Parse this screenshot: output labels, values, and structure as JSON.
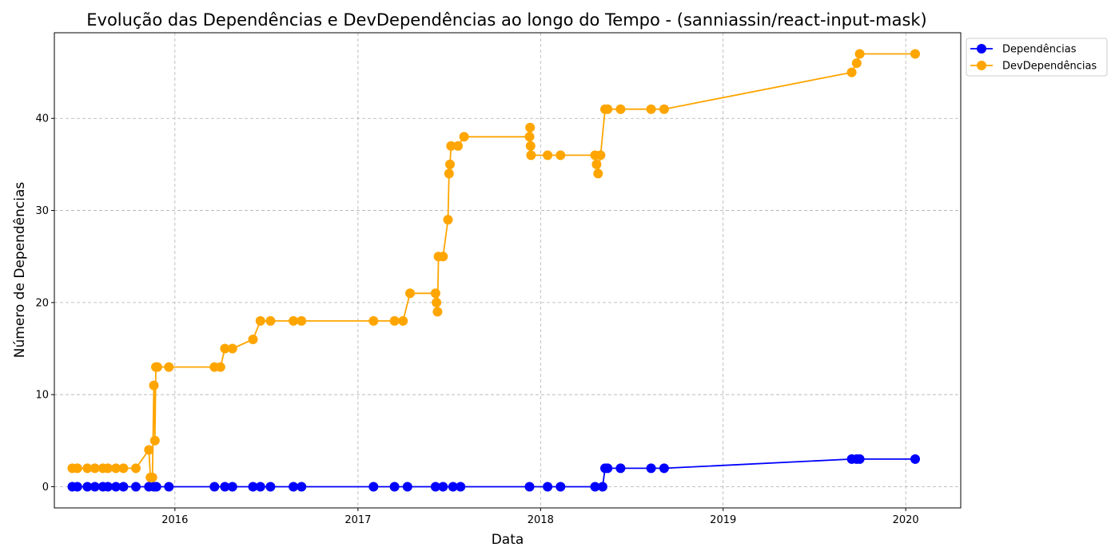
{
  "chart_data": {
    "type": "line",
    "title": "Evolução das Dependências e DevDependências ao longo do Tempo - (sanniassin/react-input-mask)",
    "xlabel": "Data",
    "ylabel": "Número de Dependências",
    "xlim": [
      "2015-05-05",
      "2020-04-20"
    ],
    "ylim": [
      -2.3,
      49.3
    ],
    "x_ticks": [
      "2016",
      "2017",
      "2018",
      "2019",
      "2020"
    ],
    "y_ticks": [
      0,
      10,
      20,
      30,
      40
    ],
    "grid": true,
    "legend_position": "outside top-right",
    "series": [
      {
        "name": "Dependências",
        "color": "#0000ff",
        "points": [
          [
            "2015-06-10",
            0
          ],
          [
            "2015-06-20",
            0
          ],
          [
            "2015-07-10",
            0
          ],
          [
            "2015-07-25",
            0
          ],
          [
            "2015-08-10",
            0
          ],
          [
            "2015-08-20",
            0
          ],
          [
            "2015-09-05",
            0
          ],
          [
            "2015-09-20",
            0
          ],
          [
            "2015-10-15",
            0
          ],
          [
            "2015-11-10",
            0
          ],
          [
            "2015-11-20",
            0
          ],
          [
            "2015-11-25",
            0
          ],
          [
            "2015-12-20",
            0
          ],
          [
            "2016-03-20",
            0
          ],
          [
            "2016-04-10",
            0
          ],
          [
            "2016-04-25",
            0
          ],
          [
            "2016-06-05",
            0
          ],
          [
            "2016-06-20",
            0
          ],
          [
            "2016-07-10",
            0
          ],
          [
            "2016-08-25",
            0
          ],
          [
            "2016-09-10",
            0
          ],
          [
            "2017-02-01",
            0
          ],
          [
            "2017-03-15",
            0
          ],
          [
            "2017-04-10",
            0
          ],
          [
            "2017-06-05",
            0
          ],
          [
            "2017-06-20",
            0
          ],
          [
            "2017-07-10",
            0
          ],
          [
            "2017-07-25",
            0
          ],
          [
            "2017-12-10",
            0
          ],
          [
            "2018-01-15",
            0
          ],
          [
            "2018-02-10",
            0
          ],
          [
            "2018-04-20",
            0
          ],
          [
            "2018-05-05",
            0
          ],
          [
            "2018-05-10",
            2
          ],
          [
            "2018-05-15",
            2
          ],
          [
            "2018-06-10",
            2
          ],
          [
            "2018-08-10",
            2
          ],
          [
            "2018-09-05",
            2
          ],
          [
            "2019-09-15",
            3
          ],
          [
            "2019-09-25",
            3
          ],
          [
            "2019-10-01",
            3
          ],
          [
            "2020-01-20",
            3
          ]
        ]
      },
      {
        "name": "DevDependências",
        "color": "#ffa500",
        "points": [
          [
            "2015-06-10",
            2
          ],
          [
            "2015-06-20",
            2
          ],
          [
            "2015-07-10",
            2
          ],
          [
            "2015-07-25",
            2
          ],
          [
            "2015-08-10",
            2
          ],
          [
            "2015-08-20",
            2
          ],
          [
            "2015-09-05",
            2
          ],
          [
            "2015-09-20",
            2
          ],
          [
            "2015-10-15",
            2
          ],
          [
            "2015-11-10",
            4
          ],
          [
            "2015-11-13",
            1
          ],
          [
            "2015-11-17",
            1
          ],
          [
            "2015-11-20",
            11
          ],
          [
            "2015-11-22",
            5
          ],
          [
            "2015-11-24",
            13
          ],
          [
            "2015-11-27",
            13
          ],
          [
            "2015-12-20",
            13
          ],
          [
            "2016-03-20",
            13
          ],
          [
            "2016-04-01",
            13
          ],
          [
            "2016-04-10",
            15
          ],
          [
            "2016-04-25",
            15
          ],
          [
            "2016-06-05",
            16
          ],
          [
            "2016-06-20",
            18
          ],
          [
            "2016-07-10",
            18
          ],
          [
            "2016-08-25",
            18
          ],
          [
            "2016-09-10",
            18
          ],
          [
            "2017-02-01",
            18
          ],
          [
            "2017-03-15",
            18
          ],
          [
            "2017-04-01",
            18
          ],
          [
            "2017-04-15",
            21
          ],
          [
            "2017-06-05",
            21
          ],
          [
            "2017-06-07",
            20
          ],
          [
            "2017-06-09",
            19
          ],
          [
            "2017-06-11",
            25
          ],
          [
            "2017-06-20",
            25
          ],
          [
            "2017-06-30",
            29
          ],
          [
            "2017-07-02",
            34
          ],
          [
            "2017-07-04",
            35
          ],
          [
            "2017-07-06",
            37
          ],
          [
            "2017-07-20",
            37
          ],
          [
            "2017-08-01",
            38
          ],
          [
            "2017-12-10",
            38
          ],
          [
            "2017-12-11",
            39
          ],
          [
            "2017-12-12",
            37
          ],
          [
            "2017-12-13",
            36
          ],
          [
            "2018-01-15",
            36
          ],
          [
            "2018-02-10",
            36
          ],
          [
            "2018-04-20",
            36
          ],
          [
            "2018-04-23",
            35
          ],
          [
            "2018-04-26",
            34
          ],
          [
            "2018-05-01",
            36
          ],
          [
            "2018-05-10",
            41
          ],
          [
            "2018-05-15",
            41
          ],
          [
            "2018-06-10",
            41
          ],
          [
            "2018-08-10",
            41
          ],
          [
            "2018-09-05",
            41
          ],
          [
            "2019-09-15",
            45
          ],
          [
            "2019-09-25",
            46
          ],
          [
            "2019-10-01",
            47
          ],
          [
            "2020-01-20",
            47
          ]
        ]
      }
    ]
  }
}
